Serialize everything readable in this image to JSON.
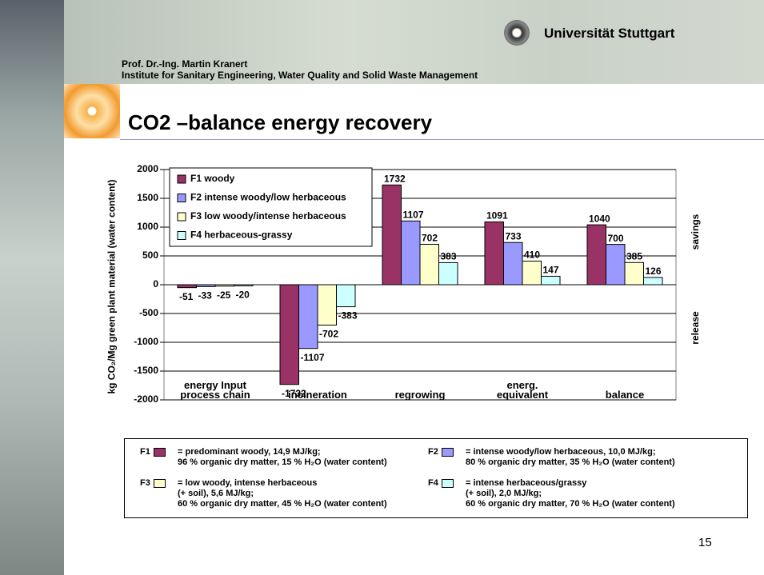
{
  "header": {
    "university": "Universität Stuttgart",
    "author": "Prof. Dr.-Ing. Martin Kranert",
    "institute": "Institute for Sanitary Engineering, Water Quality and Solid Waste Management"
  },
  "slide_title": "CO2 –balance energy recovery",
  "chart_data": {
    "type": "bar",
    "ylabel": "kg CO₂/Mg green plant material (water content)",
    "categories": [
      "energy Input process chain",
      "incineration",
      "regrowing",
      "energ. equivalent",
      "balance"
    ],
    "series": [
      {
        "name": "F1 woody",
        "color": "#993366",
        "values": [
          -51,
          -1732,
          1732,
          1091,
          1040
        ]
      },
      {
        "name": "F2 intense woody/low herbaceous",
        "color": "#9999ff",
        "values": [
          -33,
          -1107,
          1107,
          733,
          700
        ]
      },
      {
        "name": "F3 low woody/intense herbaceous",
        "color": "#ffffcc",
        "values": [
          -25,
          -702,
          702,
          410,
          385
        ]
      },
      {
        "name": "F4 herbaceous-grassy",
        "color": "#ccffff",
        "values": [
          -20,
          -383,
          383,
          147,
          126
        ]
      }
    ],
    "ylim": [
      -2000,
      2000
    ],
    "yticks": [
      -2000,
      -1500,
      -1000,
      -500,
      0,
      500,
      1000,
      1500,
      2000
    ],
    "grid": true,
    "legend": "upper left",
    "annotations": [
      "savings",
      "release"
    ]
  },
  "footnote": [
    {
      "key": "F1",
      "lines": [
        "= predominant woody, 14,9 MJ/kg;",
        "96 % organic dry matter, 15 % H₂O (water content)"
      ]
    },
    {
      "key": "F2",
      "lines": [
        "= intense woody/low herbaceous, 10,0 MJ/kg;",
        "80 % organic dry matter, 35 % H₂O (water content)"
      ]
    },
    {
      "key": "F3",
      "lines": [
        "= low woody, intense herbaceous",
        "(+ soil), 5,6 MJ/kg;",
        "60 % organic dry matter, 45 % H₂O (water content)"
      ]
    },
    {
      "key": "F4",
      "lines": [
        "= intense herbaceous/grassy",
        "(+ soil), 2,0 MJ/kg;",
        "60 % organic dry matter, 70 % H₂O (water content)"
      ]
    }
  ],
  "page_number": "15"
}
